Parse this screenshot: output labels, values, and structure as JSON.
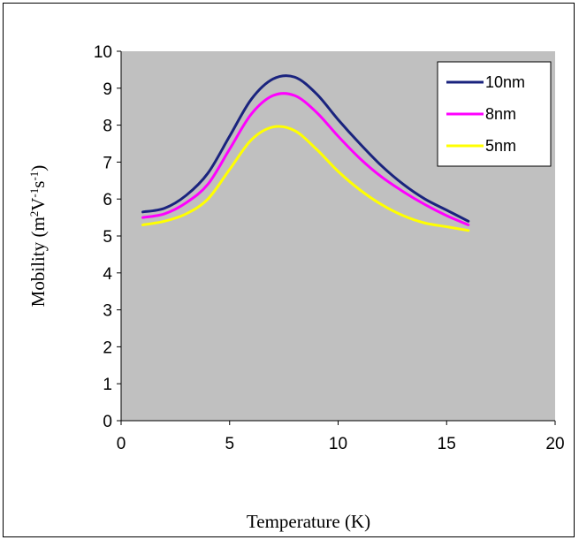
{
  "chart_data": {
    "type": "line",
    "xlabel": "Temperature (K)",
    "ylabel_main": "Mobility (m",
    "ylabel_sup1": "2",
    "ylabel_mid": "V",
    "ylabel_sup2": "-1",
    "ylabel_mid2": "s",
    "ylabel_sup3": "-1",
    "ylabel_end": ")",
    "xlim": [
      0,
      20
    ],
    "ylim": [
      0,
      10
    ],
    "x_ticks": [
      "0",
      "5",
      "10",
      "15",
      "20"
    ],
    "y_ticks": [
      "0",
      "1",
      "2",
      "3",
      "4",
      "5",
      "6",
      "7",
      "8",
      "9",
      "10"
    ],
    "legend_position": "top-right",
    "grid": false,
    "plot_background": "#c0c0c0",
    "series": [
      {
        "name": "10nm",
        "color": "#1a237e",
        "x": [
          1,
          2,
          3,
          4,
          5,
          6,
          7,
          8,
          9,
          10,
          11,
          12,
          13,
          14,
          15,
          16
        ],
        "y": [
          5.65,
          5.75,
          6.1,
          6.7,
          7.7,
          8.7,
          9.25,
          9.3,
          8.85,
          8.15,
          7.5,
          6.9,
          6.4,
          6.0,
          5.7,
          5.4
        ]
      },
      {
        "name": "8nm",
        "color": "#ff00ff",
        "x": [
          1,
          2,
          3,
          4,
          5,
          6,
          7,
          8,
          9,
          10,
          11,
          12,
          13,
          14,
          15,
          16
        ],
        "y": [
          5.5,
          5.6,
          5.9,
          6.4,
          7.35,
          8.3,
          8.8,
          8.8,
          8.35,
          7.7,
          7.1,
          6.6,
          6.2,
          5.85,
          5.55,
          5.3
        ]
      },
      {
        "name": "5nm",
        "color": "#ffff00",
        "x": [
          1,
          2,
          3,
          4,
          5,
          6,
          7,
          8,
          9,
          10,
          11,
          12,
          13,
          14,
          15,
          16
        ],
        "y": [
          5.3,
          5.4,
          5.6,
          6.0,
          6.8,
          7.6,
          7.95,
          7.85,
          7.35,
          6.75,
          6.25,
          5.85,
          5.55,
          5.35,
          5.25,
          5.15
        ]
      }
    ]
  }
}
